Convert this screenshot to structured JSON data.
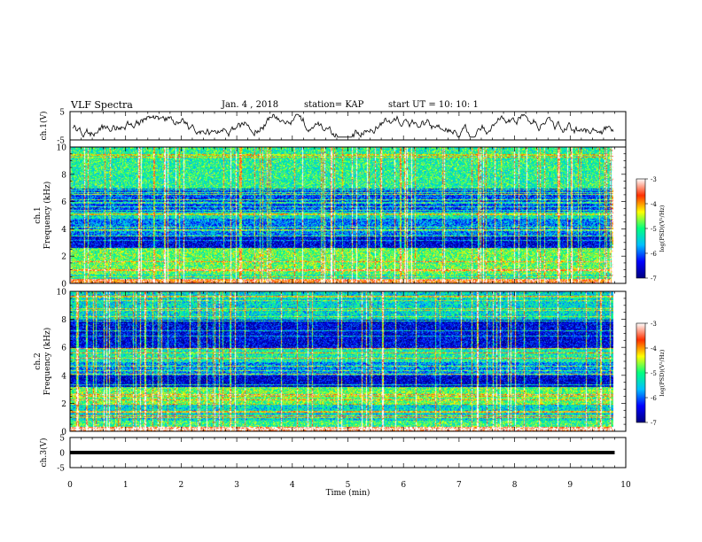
{
  "header": {
    "title": "VLF Spectra",
    "date": "Jan. 4 , 2018",
    "station": "station= KAP",
    "start": "start UT = 10: 10: 1"
  },
  "chart_data": [
    {
      "type": "line",
      "panel": "ch1-voltage",
      "ylabel": "ch.1(V)",
      "ylim": [
        -5,
        5
      ],
      "yticks": [
        "5",
        "-5"
      ],
      "xlim": [
        0,
        9.8
      ],
      "trace": "noisy waveform oscillating around 0 V, amplitude about ±2.5 V"
    },
    {
      "type": "heatmap",
      "panel": "ch1-spectrogram",
      "ylabel": "ch.1 Frequency (kHz)",
      "ylim": [
        0,
        10
      ],
      "yticks": [
        "0",
        "2",
        "4",
        "6",
        "8",
        "10"
      ],
      "colorbar": {
        "label": "log(PSD)(V²/Hz)",
        "range": [
          -7,
          -3
        ],
        "ticks": [
          "-3",
          "-4",
          "-5",
          "-6",
          "-7"
        ],
        "colormap": [
          "#00007f",
          "#0000ff",
          "#00bfff",
          "#00ff80",
          "#ffff00",
          "#ff3000",
          "#ffffff"
        ]
      }
    },
    {
      "type": "heatmap",
      "panel": "ch2-spectrogram",
      "ylabel": "ch.2 Frequency (kHz)",
      "ylim": [
        0,
        10
      ],
      "yticks": [
        "0",
        "2",
        "4",
        "6",
        "8",
        "10"
      ],
      "colorbar": {
        "label": "log(PSD)(V²/Hz)",
        "range": [
          -7,
          -3
        ],
        "ticks": [
          "-3",
          "-4",
          "-5",
          "-6",
          "-7"
        ],
        "colormap": [
          "#00007f",
          "#0000ff",
          "#00bfff",
          "#00ff80",
          "#ffff00",
          "#ff3000",
          "#ffffff"
        ]
      }
    },
    {
      "type": "line",
      "panel": "ch3-voltage",
      "ylabel": "ch.3(V)",
      "ylim": [
        -5,
        5
      ],
      "yticks": [
        "5",
        "0",
        "-5"
      ],
      "xlim": [
        0,
        9.8
      ],
      "series": [
        {
          "x": [
            0,
            9.8
          ],
          "y": [
            0,
            0
          ]
        }
      ]
    }
  ],
  "xaxis": {
    "label": "Time (min)",
    "xlim": [
      0,
      10
    ],
    "ticks": [
      "0",
      "1",
      "2",
      "3",
      "4",
      "5",
      "6",
      "7",
      "8",
      "9",
      "10"
    ]
  }
}
